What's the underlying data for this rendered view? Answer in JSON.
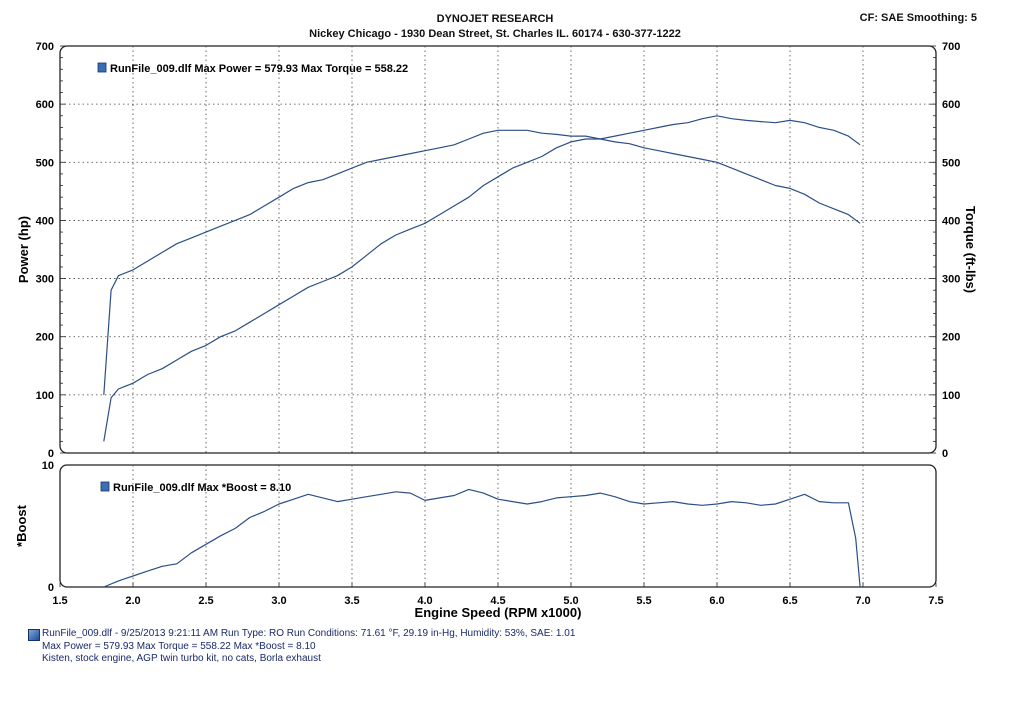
{
  "header": {
    "title": "DYNOJET RESEARCH",
    "subtitle": "Nickey Chicago - 1930 Dean Street, St. Charles IL. 60174 - 630-377-1222",
    "cf_info": "CF: SAE  Smoothing: 5"
  },
  "chart_data": [
    {
      "type": "line",
      "ylabel": "Power (hp)",
      "y2label": "Torque (ft-lbs)",
      "xlim": [
        1.5,
        7.5
      ],
      "ylim": [
        0,
        700
      ],
      "y2lim": [
        0,
        700
      ],
      "grid": true,
      "yticks": [
        "0",
        "100",
        "200",
        "300",
        "400",
        "500",
        "600",
        "700"
      ],
      "legend": "RunFile_009.dlf Max Power = 579.93    Max Torque = 558.22",
      "legend_position": "top-left",
      "line_color": "#2b4f86",
      "series": [
        {
          "axis": "left",
          "x": [
            1.8,
            1.85,
            1.9,
            2.0,
            2.1,
            2.2,
            2.3,
            2.4,
            2.5,
            2.6,
            2.7,
            2.8,
            2.9,
            3.0,
            3.1,
            3.2,
            3.3,
            3.4,
            3.5,
            3.6,
            3.7,
            3.8,
            3.9,
            4.0,
            4.1,
            4.2,
            4.3,
            4.4,
            4.5,
            4.6,
            4.7,
            4.8,
            4.9,
            5.0,
            5.1,
            5.2,
            5.3,
            5.4,
            5.5,
            5.6,
            5.7,
            5.8,
            5.9,
            6.0,
            6.1,
            6.2,
            6.3,
            6.4,
            6.5,
            6.6,
            6.7,
            6.8,
            6.9,
            6.98
          ],
          "values": [
            20,
            95,
            110,
            120,
            135,
            145,
            160,
            175,
            185,
            200,
            210,
            225,
            240,
            255,
            270,
            285,
            295,
            305,
            320,
            340,
            360,
            375,
            385,
            395,
            410,
            425,
            440,
            460,
            475,
            490,
            500,
            510,
            525,
            535,
            540,
            540,
            545,
            550,
            555,
            560,
            565,
            568,
            575,
            580,
            575,
            572,
            570,
            568,
            572,
            568,
            560,
            555,
            545,
            530
          ]
        },
        {
          "axis": "right",
          "x": [
            1.8,
            1.85,
            1.9,
            2.0,
            2.1,
            2.2,
            2.3,
            2.4,
            2.5,
            2.6,
            2.7,
            2.8,
            2.9,
            3.0,
            3.1,
            3.2,
            3.3,
            3.4,
            3.5,
            3.6,
            3.7,
            3.8,
            3.9,
            4.0,
            4.1,
            4.2,
            4.3,
            4.4,
            4.5,
            4.6,
            4.7,
            4.8,
            4.9,
            5.0,
            5.1,
            5.2,
            5.3,
            5.4,
            5.5,
            5.6,
            5.7,
            5.8,
            5.9,
            6.0,
            6.1,
            6.2,
            6.3,
            6.4,
            6.5,
            6.6,
            6.7,
            6.8,
            6.9,
            6.98
          ],
          "values": [
            100,
            280,
            305,
            315,
            330,
            345,
            360,
            370,
            380,
            390,
            400,
            410,
            425,
            440,
            455,
            465,
            470,
            480,
            490,
            500,
            505,
            510,
            515,
            520,
            525,
            530,
            540,
            550,
            555,
            555,
            555,
            550,
            548,
            545,
            545,
            540,
            535,
            532,
            525,
            520,
            515,
            510,
            505,
            500,
            490,
            480,
            470,
            460,
            455,
            445,
            430,
            420,
            410,
            395
          ]
        }
      ]
    },
    {
      "type": "line",
      "xlabel": "Engine Speed (RPM x1000)",
      "ylabel": "*Boost",
      "xlim": [
        1.5,
        7.5
      ],
      "ylim": [
        0,
        10
      ],
      "grid": true,
      "yticks": [
        "0",
        "10"
      ],
      "xticks": [
        "1.5",
        "2.0",
        "2.5",
        "3.0",
        "3.5",
        "4.0",
        "4.5",
        "5.0",
        "5.5",
        "6.0",
        "6.5",
        "7.0",
        "7.5"
      ],
      "legend": "RunFile_009.dlf Max *Boost = 8.10",
      "legend_position": "top-left",
      "line_color": "#2b4f86",
      "series": [
        {
          "x": [
            1.8,
            1.9,
            2.0,
            2.1,
            2.2,
            2.3,
            2.4,
            2.5,
            2.6,
            2.7,
            2.8,
            2.9,
            3.0,
            3.1,
            3.2,
            3.3,
            3.4,
            3.5,
            3.6,
            3.7,
            3.8,
            3.9,
            4.0,
            4.1,
            4.2,
            4.3,
            4.4,
            4.5,
            4.6,
            4.7,
            4.8,
            4.9,
            5.0,
            5.1,
            5.2,
            5.3,
            5.4,
            5.5,
            5.6,
            5.7,
            5.8,
            5.9,
            6.0,
            6.1,
            6.2,
            6.3,
            6.4,
            6.5,
            6.6,
            6.7,
            6.8,
            6.9,
            6.95,
            6.98
          ],
          "values": [
            0,
            0.5,
            0.9,
            1.3,
            1.7,
            1.9,
            2.8,
            3.5,
            4.2,
            4.8,
            5.7,
            6.2,
            6.8,
            7.2,
            7.6,
            7.3,
            7.0,
            7.2,
            7.4,
            7.6,
            7.8,
            7.7,
            7.1,
            7.3,
            7.5,
            8.0,
            7.7,
            7.2,
            7.0,
            6.8,
            7.0,
            7.3,
            7.4,
            7.5,
            7.7,
            7.4,
            7.0,
            6.8,
            6.9,
            7.0,
            6.8,
            6.7,
            6.8,
            7.0,
            6.9,
            6.7,
            6.8,
            7.2,
            7.6,
            7.0,
            6.9,
            6.9,
            4.0,
            0
          ]
        }
      ]
    }
  ],
  "footer": {
    "line1": "RunFile_009.dlf - 9/25/2013 9:21:11 AM  Run Type: RO  Run Conditions: 71.61 °F, 29.19 in-Hg,  Humidity:  53%, SAE: 1.01",
    "line2": "Max Power = 579.93  Max Torque = 558.22  Max *Boost = 8.10",
    "line3": "Kisten, stock engine, AGP twin turbo kit, no cats, Borla exhaust"
  }
}
